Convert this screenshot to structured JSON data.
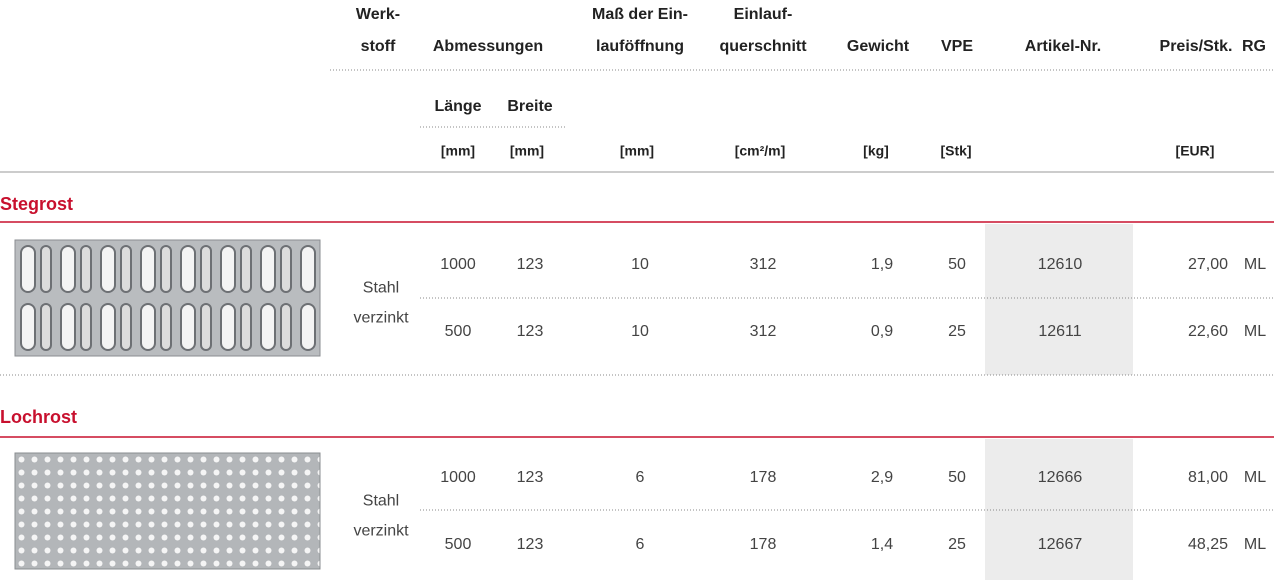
{
  "header": {
    "columns": [
      {
        "lines": [
          "Werk-",
          "stoff"
        ]
      },
      {
        "lines": [
          "Abmessungen"
        ]
      },
      {
        "lines": [
          "Maß der Ein-",
          "lauföffnung"
        ]
      },
      {
        "lines": [
          "Einlauf-",
          "querschnitt"
        ]
      },
      {
        "lines": [
          "Gewicht"
        ]
      },
      {
        "lines": [
          "VPE"
        ]
      },
      {
        "lines": [
          "Artikel-Nr."
        ]
      },
      {
        "lines": [
          "Preis/Stk."
        ]
      },
      {
        "lines": [
          "RG"
        ]
      }
    ],
    "subcolumns": [
      "Länge",
      "Breite"
    ],
    "units": [
      "[mm]",
      "[mm]",
      "[mm]",
      "[cm²/m]",
      "[kg]",
      "[Stk]",
      "[EUR]"
    ]
  },
  "sections": [
    {
      "title": "Stegrost",
      "material": [
        "Stahl",
        "verzinkt"
      ],
      "rows": [
        [
          "1000",
          "123",
          "10",
          "312",
          "1,9",
          "50",
          "12610",
          "27,00",
          "ML"
        ],
        [
          "500",
          "123",
          "10",
          "312",
          "0,9",
          "25",
          "12611",
          "22,60",
          "ML"
        ]
      ]
    },
    {
      "title": "Lochrost",
      "material": [
        "Stahl",
        "verzinkt"
      ],
      "rows": [
        [
          "1000",
          "123",
          "6",
          "178",
          "2,9",
          "50",
          "12666",
          "81,00",
          "ML"
        ],
        [
          "500",
          "123",
          "6",
          "178",
          "1,4",
          "25",
          "12667",
          "48,25",
          "ML"
        ]
      ]
    }
  ]
}
